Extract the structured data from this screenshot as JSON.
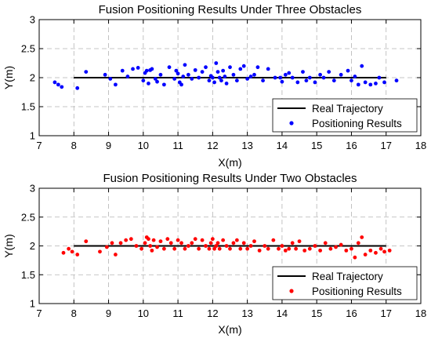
{
  "chart_data": [
    {
      "type": "scatter",
      "title": "Fusion Positioning Results Under Three Obstacles",
      "xlabel": "X(m)",
      "ylabel": "Y(m)",
      "xlim": [
        7,
        18
      ],
      "ylim": [
        1,
        3
      ],
      "xticks": [
        "7",
        "8",
        "9",
        "10",
        "11",
        "12",
        "13",
        "14",
        "15",
        "16",
        "17",
        "18"
      ],
      "yticks": [
        "1",
        "1.5",
        "2",
        "2.5",
        "3"
      ],
      "grid": true,
      "legend_position": "bottom-right",
      "series": [
        {
          "name": "Real Trajectory",
          "kind": "line",
          "color": "#000000",
          "x": [
            8,
            17
          ],
          "y": [
            2,
            2
          ]
        },
        {
          "name": "Positioning Results",
          "kind": "points",
          "color": "#0000ff",
          "x": [
            7.45,
            7.55,
            7.65,
            8.1,
            8.35,
            8.9,
            9.05,
            9.2,
            9.4,
            9.55,
            9.7,
            9.85,
            10.0,
            10.05,
            10.1,
            10.15,
            10.2,
            10.25,
            10.35,
            10.4,
            10.5,
            10.6,
            10.75,
            10.9,
            10.95,
            11.0,
            11.05,
            11.1,
            11.15,
            11.2,
            11.3,
            11.4,
            11.5,
            11.6,
            11.7,
            11.8,
            11.9,
            11.95,
            12.0,
            12.05,
            12.1,
            12.15,
            12.2,
            12.25,
            12.3,
            12.35,
            12.4,
            12.5,
            12.6,
            12.7,
            12.8,
            12.9,
            13.0,
            13.1,
            13.2,
            13.3,
            13.45,
            13.6,
            13.8,
            13.95,
            14.0,
            14.1,
            14.2,
            14.3,
            14.45,
            14.6,
            14.7,
            14.8,
            14.95,
            15.1,
            15.2,
            15.35,
            15.5,
            15.7,
            15.9,
            16.0,
            16.1,
            16.2,
            16.3,
            16.4,
            16.55,
            16.7,
            16.8,
            16.95,
            17.3
          ],
          "y": [
            1.92,
            1.88,
            1.84,
            1.82,
            2.1,
            2.05,
            1.98,
            1.88,
            2.12,
            2.02,
            2.15,
            2.17,
            1.95,
            2.08,
            2.12,
            1.9,
            2.13,
            2.15,
            1.98,
            1.93,
            2.05,
            1.88,
            2.18,
            1.98,
            2.12,
            2.07,
            1.92,
            1.88,
            2.02,
            2.22,
            2.05,
            1.98,
            2.13,
            2.0,
            2.1,
            2.18,
            1.95,
            2.03,
            2.0,
            1.92,
            2.25,
            2.1,
            2.0,
            1.95,
            2.12,
            2.02,
            1.9,
            2.18,
            2.05,
            1.95,
            2.15,
            2.2,
            1.98,
            2.02,
            2.05,
            2.18,
            1.95,
            2.15,
            2.0,
            2.0,
            1.93,
            2.05,
            2.08,
            2.0,
            1.92,
            2.1,
            1.95,
            2.0,
            1.92,
            2.05,
            2.0,
            2.1,
            1.95,
            2.05,
            2.12,
            1.95,
            2.02,
            1.88,
            2.2,
            1.92,
            1.88,
            1.9,
            2.0,
            1.92,
            1.95
          ]
        }
      ]
    },
    {
      "type": "scatter",
      "title": "Fusion Positioning Results Under Two Obstacles",
      "xlabel": "X(m)",
      "ylabel": "Y(m)",
      "xlim": [
        7,
        18
      ],
      "ylim": [
        1,
        3
      ],
      "xticks": [
        "7",
        "8",
        "9",
        "10",
        "11",
        "12",
        "13",
        "14",
        "15",
        "16",
        "17",
        "18"
      ],
      "yticks": [
        "1",
        "1.5",
        "2",
        "2.5",
        "3"
      ],
      "grid": true,
      "legend_position": "bottom-right",
      "series": [
        {
          "name": "Real Trajectory",
          "kind": "line",
          "color": "#000000",
          "x": [
            8,
            17
          ],
          "y": [
            2,
            2
          ]
        },
        {
          "name": "Positioning Results",
          "kind": "points",
          "color": "#ff0000",
          "x": [
            7.7,
            7.85,
            7.95,
            8.1,
            8.35,
            8.75,
            8.95,
            9.1,
            9.2,
            9.35,
            9.5,
            9.65,
            9.8,
            9.95,
            10.05,
            10.1,
            10.15,
            10.2,
            10.25,
            10.3,
            10.4,
            10.5,
            10.6,
            10.7,
            10.8,
            10.9,
            11.0,
            11.1,
            11.2,
            11.3,
            11.4,
            11.5,
            11.6,
            11.7,
            11.8,
            11.9,
            11.95,
            12.0,
            12.05,
            12.1,
            12.15,
            12.2,
            12.3,
            12.4,
            12.5,
            12.6,
            12.7,
            12.8,
            12.9,
            13.0,
            13.1,
            13.2,
            13.35,
            13.5,
            13.6,
            13.75,
            13.9,
            14.0,
            14.1,
            14.2,
            14.3,
            14.4,
            14.5,
            14.65,
            14.8,
            14.95,
            15.1,
            15.25,
            15.4,
            15.55,
            15.7,
            15.85,
            16.0,
            16.1,
            16.2,
            16.3,
            16.4,
            16.55,
            16.7,
            16.85,
            16.95,
            17.1
          ],
          "y": [
            1.88,
            1.95,
            1.9,
            1.85,
            2.08,
            1.9,
            1.98,
            2.05,
            1.85,
            2.05,
            2.1,
            2.12,
            2.0,
            1.95,
            2.05,
            2.15,
            2.12,
            2.0,
            1.92,
            2.1,
            1.98,
            2.08,
            1.95,
            2.12,
            2.05,
            1.95,
            2.1,
            2.05,
            1.95,
            2.0,
            2.05,
            2.12,
            1.95,
            2.1,
            2.0,
            1.95,
            2.05,
            2.12,
            1.95,
            2.0,
            2.05,
            1.95,
            2.1,
            2.0,
            1.95,
            2.05,
            2.1,
            1.95,
            2.05,
            1.95,
            2.0,
            2.08,
            1.92,
            2.0,
            1.95,
            2.1,
            1.95,
            2.0,
            1.92,
            1.95,
            2.05,
            1.95,
            2.08,
            1.92,
            1.95,
            2.0,
            1.92,
            2.05,
            1.95,
            1.98,
            2.02,
            1.92,
            1.95,
            1.8,
            2.05,
            2.15,
            1.85,
            1.92,
            1.88,
            1.95,
            1.9,
            1.92
          ]
        }
      ]
    }
  ]
}
